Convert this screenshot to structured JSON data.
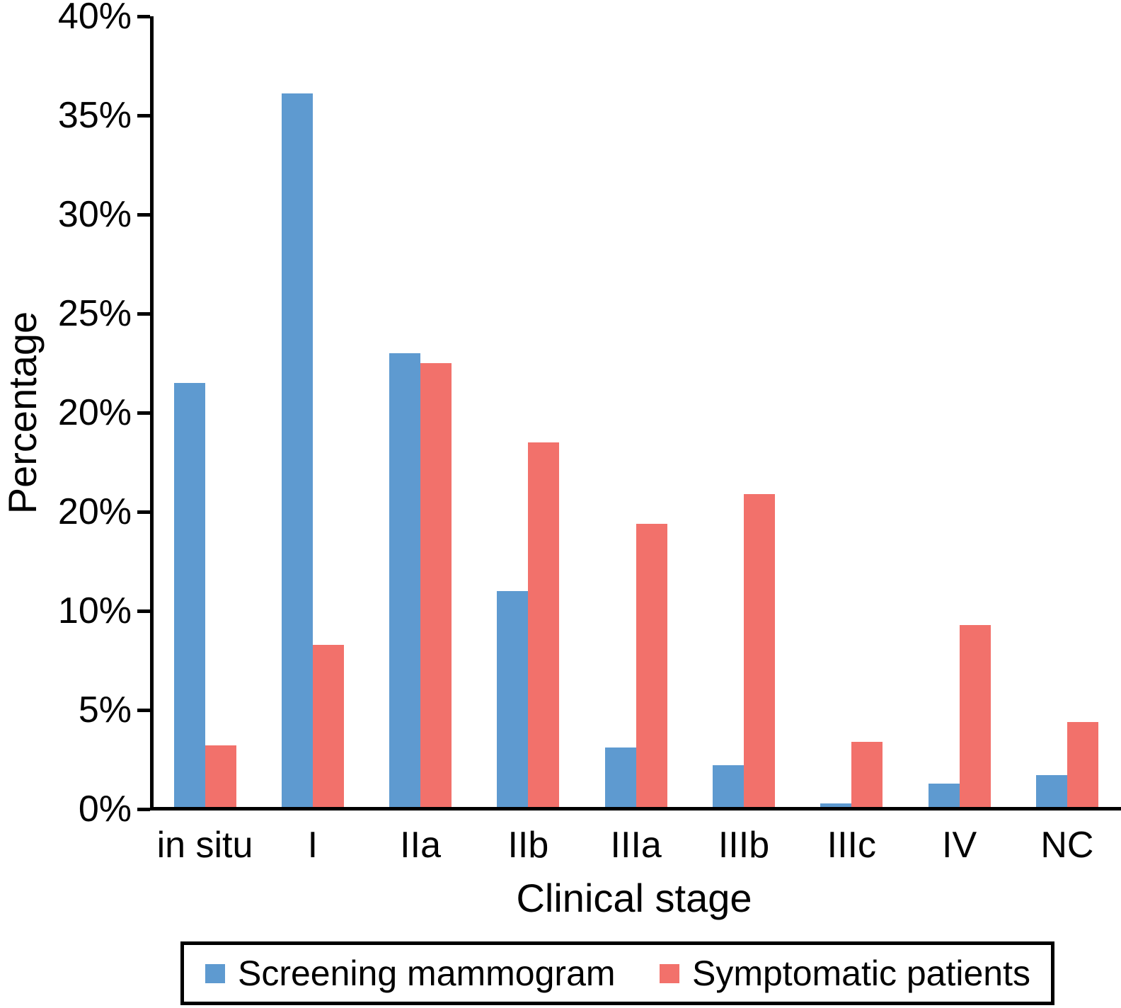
{
  "figure": {
    "y_axis_title": "Percentage",
    "x_axis_title": "Clinical stage"
  },
  "chart_data": {
    "type": "bar",
    "title": "",
    "xlabel": "Clinical stage",
    "ylabel": "Percentage",
    "categories": [
      "in situ",
      "I",
      "IIa",
      "IIb",
      "IIIa",
      "IIIb",
      "IIIc",
      "IV",
      "NC"
    ],
    "series": [
      {
        "name": "Screening mammogram",
        "color": "#5E9AD0",
        "values": [
          21.5,
          36.1,
          23.0,
          11.0,
          3.1,
          2.2,
          0.3,
          1.3,
          1.7
        ]
      },
      {
        "name": "Symptomatic patients",
        "color": "#F2716B",
        "values": [
          3.2,
          8.3,
          22.5,
          18.5,
          14.4,
          15.9,
          3.4,
          9.3,
          4.4
        ]
      }
    ],
    "ylim": [
      0,
      40
    ],
    "grid": false,
    "legend_position": "bottom",
    "y_ticks": [
      {
        "label": "0%",
        "value": 0
      },
      {
        "label": "5%",
        "value": 5
      },
      {
        "label": "10%",
        "value": 10
      },
      {
        "label": "20%",
        "value": 15
      },
      {
        "label": "20%",
        "value": 20
      },
      {
        "label": "25%",
        "value": 25
      },
      {
        "label": "30%",
        "value": 30
      },
      {
        "label": "35%",
        "value": 35
      },
      {
        "label": "40%",
        "value": 40
      }
    ]
  },
  "legend": {
    "items": [
      {
        "label": "Screening mammogram",
        "color": "#5E9AD0"
      },
      {
        "label": "Symptomatic patients",
        "color": "#F2716B"
      }
    ]
  }
}
